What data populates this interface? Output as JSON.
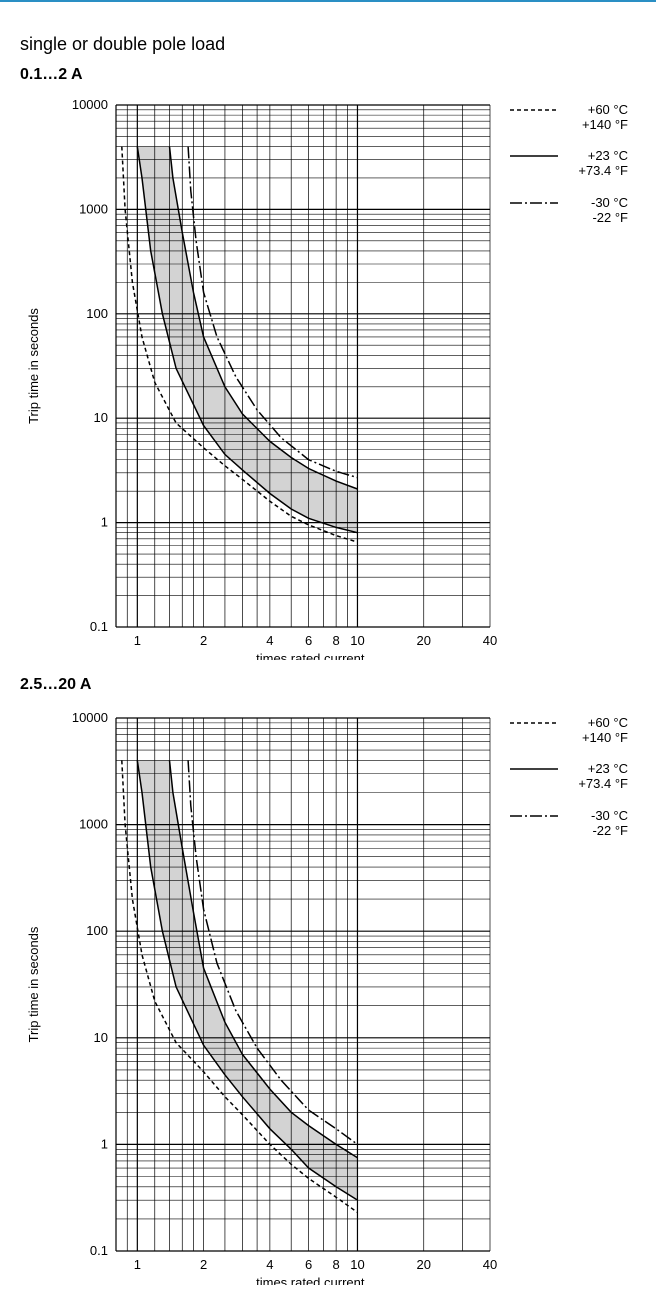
{
  "page": {
    "heading": "single or double pole load"
  },
  "colors": {
    "accent_rule": "#2a8fc4",
    "band_fill": "#d3d3d3",
    "grid": "#000000"
  },
  "legend": [
    {
      "style": "dashed",
      "label_c": "+60 °C",
      "label_f": "+140 °F"
    },
    {
      "style": "solid",
      "label_c": "+23 °C",
      "label_f": "+73.4 °F"
    },
    {
      "style": "dashdot",
      "label_c": "-30 °C",
      "label_f": "-22 °F"
    }
  ],
  "chart_data": [
    {
      "type": "line",
      "title": "0.1…2 A",
      "xlabel": "… times rated current",
      "ylabel": "Trip time in seconds",
      "xscale": "log",
      "yscale": "log",
      "xlim": [
        0.8,
        40
      ],
      "ylim": [
        0.1,
        10000
      ],
      "x_ticks": [
        1,
        2,
        4,
        6,
        8,
        10,
        20,
        40
      ],
      "y_ticks": [
        0.1,
        1,
        10,
        100,
        1000,
        10000
      ],
      "grid": true,
      "legend_position": "right",
      "band": {
        "upper": {
          "x": [
            1.4,
            1.45,
            1.6,
            1.8,
            2,
            2.5,
            3,
            4,
            5,
            6,
            8,
            10
          ],
          "y": [
            4000,
            2000,
            600,
            160,
            60,
            20,
            11,
            6,
            4.2,
            3.3,
            2.5,
            2.1
          ]
        },
        "lower": {
          "x": [
            1,
            1.05,
            1.15,
            1.3,
            1.5,
            2,
            2.5,
            3,
            4,
            5,
            6,
            8,
            10
          ],
          "y": [
            4000,
            2000,
            400,
            100,
            30,
            8.5,
            4.5,
            3.2,
            1.9,
            1.35,
            1.1,
            0.9,
            0.8
          ]
        }
      },
      "series": [
        {
          "name": "+60 °C",
          "style": "dashed",
          "x": [
            0.85,
            0.88,
            0.95,
            1.05,
            1.2,
            1.5,
            2,
            2.5,
            3,
            4,
            5,
            6,
            8,
            10
          ],
          "y": [
            4000,
            1000,
            200,
            60,
            22,
            9,
            5.2,
            3.5,
            2.6,
            1.6,
            1.15,
            0.95,
            0.75,
            0.65
          ]
        },
        {
          "name": "+23 °C",
          "style": "solid",
          "x": [
            1,
            1.05,
            1.15,
            1.3,
            1.5,
            2,
            2.5,
            3,
            4,
            5,
            6,
            8,
            10
          ],
          "y": [
            4000,
            2000,
            400,
            100,
            30,
            8.5,
            4.5,
            3.2,
            1.9,
            1.35,
            1.1,
            0.9,
            0.8
          ]
        },
        {
          "name": "+23 °C",
          "style": "solid",
          "x": [
            1.4,
            1.45,
            1.6,
            1.8,
            2,
            2.5,
            3,
            4,
            5,
            6,
            8,
            10
          ],
          "y": [
            4000,
            2000,
            600,
            160,
            60,
            20,
            11,
            6,
            4.2,
            3.3,
            2.5,
            2.1
          ]
        },
        {
          "name": "-30 °C",
          "style": "dashdot",
          "x": [
            1.7,
            1.75,
            1.85,
            2,
            2.3,
            2.8,
            3.5,
            4.5,
            6,
            8,
            10
          ],
          "y": [
            4000,
            1500,
            500,
            160,
            60,
            25,
            12,
            6.5,
            4,
            3.1,
            2.7
          ]
        }
      ]
    },
    {
      "type": "line",
      "title": "2.5…20 A",
      "xlabel": "… times rated current",
      "ylabel": "Trip time in seconds",
      "xscale": "log",
      "yscale": "log",
      "xlim": [
        0.8,
        40
      ],
      "ylim": [
        0.1,
        10000
      ],
      "x_ticks": [
        1,
        2,
        4,
        6,
        8,
        10,
        20,
        40
      ],
      "y_ticks": [
        0.1,
        1,
        10,
        100,
        1000,
        10000
      ],
      "grid": true,
      "legend_position": "right",
      "band": {
        "upper": {
          "x": [
            1.4,
            1.45,
            1.6,
            1.8,
            2,
            2.5,
            3,
            4,
            5,
            6,
            8,
            10
          ],
          "y": [
            4000,
            2000,
            600,
            150,
            45,
            14,
            7,
            3.3,
            2,
            1.5,
            1,
            0.75
          ]
        },
        "lower": {
          "x": [
            1,
            1.05,
            1.15,
            1.3,
            1.5,
            2,
            2.5,
            3,
            4,
            5,
            6,
            8,
            10
          ],
          "y": [
            4000,
            2000,
            400,
            100,
            30,
            8.5,
            4.5,
            2.8,
            1.4,
            0.9,
            0.6,
            0.4,
            0.3
          ]
        }
      },
      "series": [
        {
          "name": "+60 °C",
          "style": "dashed",
          "x": [
            0.85,
            0.88,
            0.95,
            1.05,
            1.2,
            1.5,
            2,
            2.5,
            3,
            4,
            5,
            6,
            8,
            10
          ],
          "y": [
            4000,
            1000,
            200,
            60,
            22,
            9,
            4.8,
            2.8,
            1.9,
            1,
            0.65,
            0.48,
            0.32,
            0.23
          ]
        },
        {
          "name": "+23 °C",
          "style": "solid",
          "x": [
            1,
            1.05,
            1.15,
            1.3,
            1.5,
            2,
            2.5,
            3,
            4,
            5,
            6,
            8,
            10
          ],
          "y": [
            4000,
            2000,
            400,
            100,
            30,
            8.5,
            4.5,
            2.8,
            1.4,
            0.9,
            0.6,
            0.4,
            0.3
          ]
        },
        {
          "name": "+23 °C",
          "style": "solid",
          "x": [
            1.4,
            1.45,
            1.6,
            1.8,
            2,
            2.5,
            3,
            4,
            5,
            6,
            8,
            10
          ],
          "y": [
            4000,
            2000,
            600,
            150,
            45,
            14,
            7,
            3.3,
            2,
            1.5,
            1,
            0.75
          ]
        },
        {
          "name": "-30 °C",
          "style": "dashdot",
          "x": [
            1.7,
            1.75,
            1.85,
            2,
            2.3,
            2.8,
            3.5,
            4.5,
            6,
            8,
            10
          ],
          "y": [
            4000,
            1500,
            500,
            160,
            50,
            18,
            8,
            4,
            2.1,
            1.4,
            1
          ]
        }
      ]
    }
  ]
}
